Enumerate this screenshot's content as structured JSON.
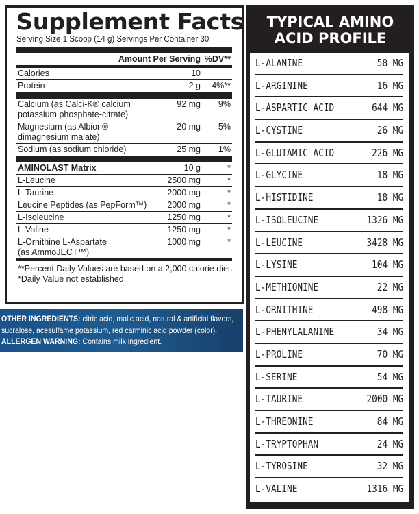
{
  "supplement_facts": {
    "title": "Supplement Facts",
    "serving": "Serving Size 1 Scoop (14 g)  Servings Per Container 30",
    "header": {
      "amount": "Amount Per Serving",
      "dv": "%DV**"
    },
    "basic": [
      {
        "name": "Calories",
        "amount": "10",
        "dv": ""
      },
      {
        "name": "Protein",
        "amount": "2 g",
        "dv": "4%**"
      }
    ],
    "minerals": [
      {
        "name1": "Calcium (as Calci-K® calcium",
        "name2": "potassium phosphate-citrate)",
        "amount": "92 mg",
        "dv": "9%"
      },
      {
        "name1": "Magnesium (as Albion®",
        "name2": "dimagnesium malate)",
        "amount": "20 mg",
        "dv": "5%"
      },
      {
        "name1": "Sodium (as sodium chloride)",
        "name2": "",
        "amount": "25 mg",
        "dv": "1%"
      }
    ],
    "matrix": {
      "name": "AMINOLAST Matrix",
      "amount": "10 g",
      "dv": "*"
    },
    "matrix_items": [
      {
        "name1": "L-Leucine",
        "name2": "",
        "amount": "2500 mg",
        "dv": "*"
      },
      {
        "name1": "L-Taurine",
        "name2": "",
        "amount": "2000 mg",
        "dv": "*"
      },
      {
        "name1": "Leucine Peptides (as PepForm™)",
        "name2": "",
        "amount": "2000 mg",
        "dv": "*"
      },
      {
        "name1": "L-Isoleucine",
        "name2": "",
        "amount": "1250 mg",
        "dv": "*"
      },
      {
        "name1": "L-Valine",
        "name2": "",
        "amount": "1250 mg",
        "dv": "*"
      },
      {
        "name1": "L-Ornithine L-Aspartate",
        "name2": "(as AmmoJECT™)",
        "amount": "1000 mg",
        "dv": "*"
      }
    ],
    "footnotes": [
      "**Percent Daily Values are based on a 2,000 calorie diet.",
      "*Daily Value not established."
    ]
  },
  "other_ingredients": {
    "label": "OTHER INGREDIENTS:",
    "text1": " citric acid, malic acid, natural & artificial flavors,",
    "text2": "sucralose, acesulfame potassium, red carminic acid powder (color).",
    "allergen_label": "ALLERGEN WARNING:",
    "allergen_text": " Contains milk ingredient.",
    "background": "#1f5b8f"
  },
  "amino_profile": {
    "title1": "TYPICAL AMINO",
    "title2": "ACID PROFILE",
    "items": [
      {
        "name": "L-ALANINE",
        "value": "58 MG"
      },
      {
        "name": "L-ARGININE",
        "value": "16 MG"
      },
      {
        "name": "L-ASPARTIC ACID",
        "value": "644 MG"
      },
      {
        "name": "L-CYSTINE",
        "value": "26 MG"
      },
      {
        "name": "L-GLUTAMIC ACID",
        "value": "226 MG"
      },
      {
        "name": "L-GLYCINE",
        "value": "18 MG"
      },
      {
        "name": "L-HISTIDINE",
        "value": "18 MG"
      },
      {
        "name": "L-ISOLEUCINE",
        "value": "1326 MG"
      },
      {
        "name": "L-LEUCINE",
        "value": "3428 MG"
      },
      {
        "name": "L-LYSINE",
        "value": "104 MG"
      },
      {
        "name": "L-METHIONINE",
        "value": "22 MG"
      },
      {
        "name": "L-ORNITHINE",
        "value": "498 MG"
      },
      {
        "name": "L-PHENYLALANINE",
        "value": "34 MG"
      },
      {
        "name": "L-PROLINE",
        "value": "70 MG"
      },
      {
        "name": "L-SERINE",
        "value": "54 MG"
      },
      {
        "name": "L-TAURINE",
        "value": "2000 MG"
      },
      {
        "name": "L-THREONINE",
        "value": "84 MG"
      },
      {
        "name": "L-TRYPTOPHAN",
        "value": "24 MG"
      },
      {
        "name": "L-TYROSINE",
        "value": "32 MG"
      },
      {
        "name": "L-VALINE",
        "value": "1316 MG"
      }
    ]
  }
}
